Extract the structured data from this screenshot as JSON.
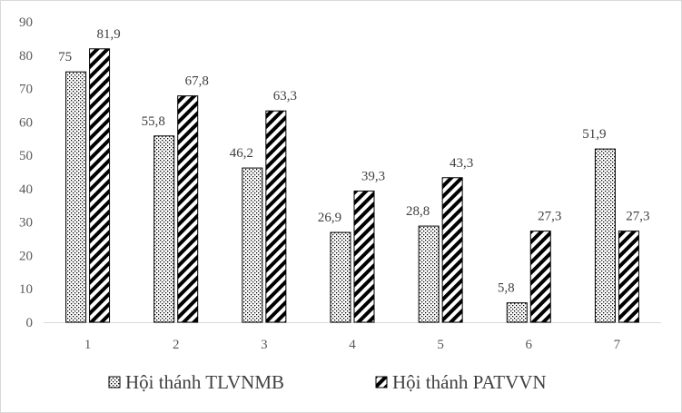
{
  "chart_data": {
    "type": "bar",
    "categories": [
      "1",
      "2",
      "3",
      "4",
      "5",
      "6",
      "7"
    ],
    "series": [
      {
        "name": "Hội thánh TLVNMB",
        "values": [
          75,
          55.8,
          46.2,
          26.9,
          28.8,
          5.8,
          51.9
        ],
        "labels": [
          "75",
          "55,8",
          "46,2",
          "26,9",
          "28,8",
          "5,8",
          "51,9"
        ],
        "pattern": "dots"
      },
      {
        "name": "Hội thánh PATVVN",
        "values": [
          81.9,
          67.8,
          63.3,
          39.3,
          43.3,
          27.3,
          27.3
        ],
        "labels": [
          "81,9",
          "67,8",
          "63,3",
          "39,3",
          "43,3",
          "27,3",
          "27,3"
        ],
        "pattern": "diagonal-stripes"
      }
    ],
    "title": "",
    "xlabel": "",
    "ylabel": "",
    "ylim": [
      0,
      90
    ],
    "yticks": [
      0,
      10,
      20,
      30,
      40,
      50,
      60,
      70,
      80,
      90
    ],
    "grid": false,
    "legend_position": "bottom"
  }
}
